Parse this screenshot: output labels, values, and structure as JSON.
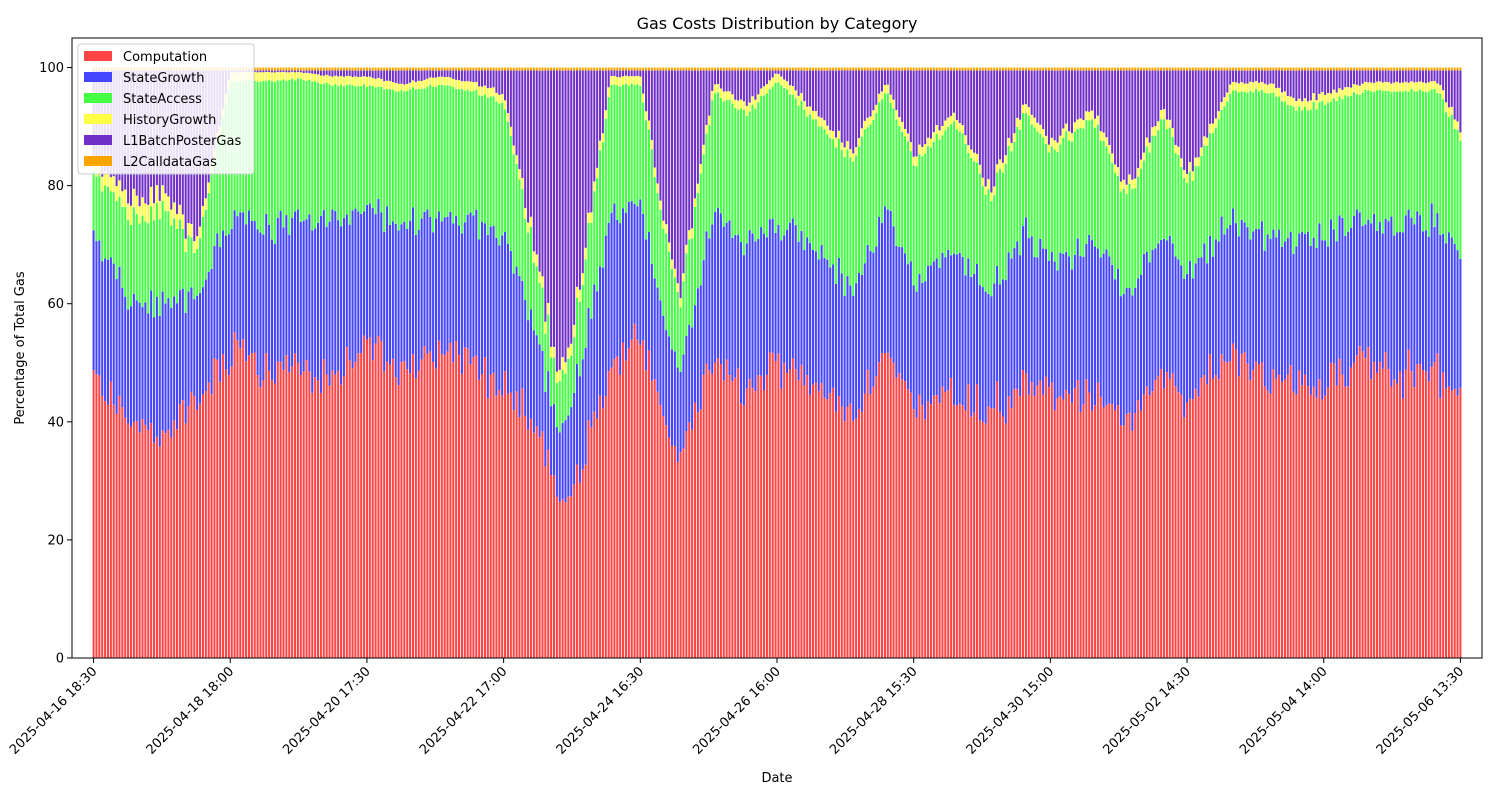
{
  "chart_data": {
    "type": "bar",
    "stacked": true,
    "title": "Gas Costs Distribution by Category",
    "xlabel": "Date",
    "ylabel": "Percentage of Total Gas",
    "ylim": [
      0,
      105
    ],
    "yticks": [
      0,
      20,
      40,
      60,
      80,
      100
    ],
    "xlim": [
      "2025-04-16 11:00",
      "2025-05-06 21:00"
    ],
    "xticks": [
      "2025-04-16 18:30",
      "2025-04-18 18:00",
      "2025-04-20 17:30",
      "2025-04-22 17:00",
      "2025-04-24 16:30",
      "2025-04-26 16:00",
      "2025-04-28 15:30",
      "2025-04-30 15:00",
      "2025-05-02 14:30",
      "2025-05-04 14:00",
      "2025-05-06 13:30"
    ],
    "bar_start": "2025-04-16 18:30",
    "bar_interval_minutes": 60,
    "grid": false,
    "legend": "top-left",
    "series": [
      {
        "name": "Computation",
        "color": "#ff4545"
      },
      {
        "name": "StateGrowth",
        "color": "#4545ff"
      },
      {
        "name": "StateAccess",
        "color": "#45ff45"
      },
      {
        "name": "HistoryGrowth",
        "color": "#ffff45"
      },
      {
        "name": "L1BatchPosterGas",
        "color": "#7030c8"
      },
      {
        "name": "L2CalldataGas",
        "color": "#ffa500"
      }
    ],
    "samples": {
      "x": [
        "2025-04-16 18:30",
        "2025-04-17 06:30",
        "2025-04-17 18:30",
        "2025-04-18 06:30",
        "2025-04-18 18:00",
        "2025-04-19 06:00",
        "2025-04-19 18:00",
        "2025-04-20 06:00",
        "2025-04-20 17:30",
        "2025-04-21 06:00",
        "2025-04-21 18:00",
        "2025-04-22 06:00",
        "2025-04-22 17:00",
        "2025-04-23 06:00",
        "2025-04-23 12:00",
        "2025-04-23 18:00",
        "2025-04-24 06:00",
        "2025-04-24 16:30",
        "2025-04-25 06:00",
        "2025-04-25 18:00",
        "2025-04-26 06:00",
        "2025-04-26 16:00",
        "2025-04-27 06:00",
        "2025-04-27 18:00",
        "2025-04-28 06:00",
        "2025-04-28 15:30",
        "2025-04-29 06:00",
        "2025-04-29 18:00",
        "2025-04-30 06:00",
        "2025-04-30 15:00",
        "2025-05-01 06:00",
        "2025-05-01 18:00",
        "2025-05-02 06:00",
        "2025-05-02 14:30",
        "2025-05-03 06:00",
        "2025-05-03 18:00",
        "2025-05-04 06:00",
        "2025-05-04 14:00",
        "2025-05-05 06:00",
        "2025-05-05 18:00",
        "2025-05-06 06:00",
        "2025-05-06 13:30"
      ],
      "Computation": [
        48,
        40,
        38,
        43,
        52,
        50,
        48,
        47,
        54,
        48,
        52,
        50,
        46,
        38,
        25,
        30,
        48,
        55,
        32,
        52,
        44,
        50,
        47,
        40,
        52,
        42,
        45,
        42,
        46,
        44,
        45,
        40,
        48,
        42,
        52,
        48,
        47,
        46,
        50,
        48,
        48,
        44
      ],
      "StateGrowth": [
        25,
        20,
        22,
        18,
        22,
        24,
        26,
        27,
        22,
        26,
        22,
        24,
        26,
        14,
        12,
        16,
        26,
        22,
        14,
        24,
        26,
        24,
        24,
        22,
        24,
        22,
        24,
        20,
        26,
        22,
        26,
        22,
        24,
        22,
        22,
        24,
        24,
        26,
        24,
        26,
        26,
        24
      ],
      "StateAccess": [
        10,
        14,
        16,
        8,
        24,
        24,
        24,
        23,
        21,
        22,
        23,
        22,
        22,
        10,
        8,
        10,
        23,
        20,
        12,
        20,
        22,
        24,
        20,
        22,
        20,
        20,
        22,
        16,
        20,
        20,
        20,
        16,
        20,
        16,
        22,
        24,
        22,
        22,
        22,
        22,
        22,
        20
      ],
      "HistoryGrowth": [
        2,
        3,
        3,
        2,
        1.5,
        1.5,
        1.2,
        1.5,
        1.5,
        1.2,
        1.5,
        1.5,
        1.5,
        2,
        2,
        2,
        1.5,
        1.5,
        1.5,
        1.5,
        1.5,
        1.5,
        1.5,
        1.5,
        1.5,
        1.5,
        1.5,
        1.5,
        1.5,
        1.5,
        1.5,
        1.5,
        1.5,
        1.5,
        1.5,
        1.5,
        1.5,
        1.5,
        1.5,
        1.5,
        1.5,
        1.5
      ],
      "L1BatchPosterGas": [
        14.5,
        22.5,
        20.5,
        28.5,
        0.3,
        0.3,
        0.3,
        1,
        1,
        2.3,
        1,
        2,
        4,
        35.5,
        52.5,
        41.5,
        1,
        1,
        40,
        2,
        6,
        0.3,
        7,
        14,
        2,
        14,
        7,
        20,
        6,
        12,
        7,
        20,
        6,
        18,
        2,
        2,
        5,
        4,
        2,
        2,
        2,
        10
      ],
      "L2CalldataGas": [
        0.5,
        0.5,
        0.5,
        0.5,
        0.5,
        0.5,
        0.5,
        0.5,
        0.5,
        0.5,
        0.5,
        0.5,
        0.5,
        0.5,
        0.5,
        0.5,
        0.5,
        0.5,
        0.5,
        0.5,
        0.5,
        0.5,
        0.5,
        0.5,
        0.5,
        0.5,
        0.5,
        0.5,
        0.5,
        0.5,
        0.5,
        0.5,
        0.5,
        0.5,
        0.5,
        0.5,
        0.5,
        0.5,
        0.5,
        0.5,
        0.5,
        0.5
      ]
    }
  }
}
